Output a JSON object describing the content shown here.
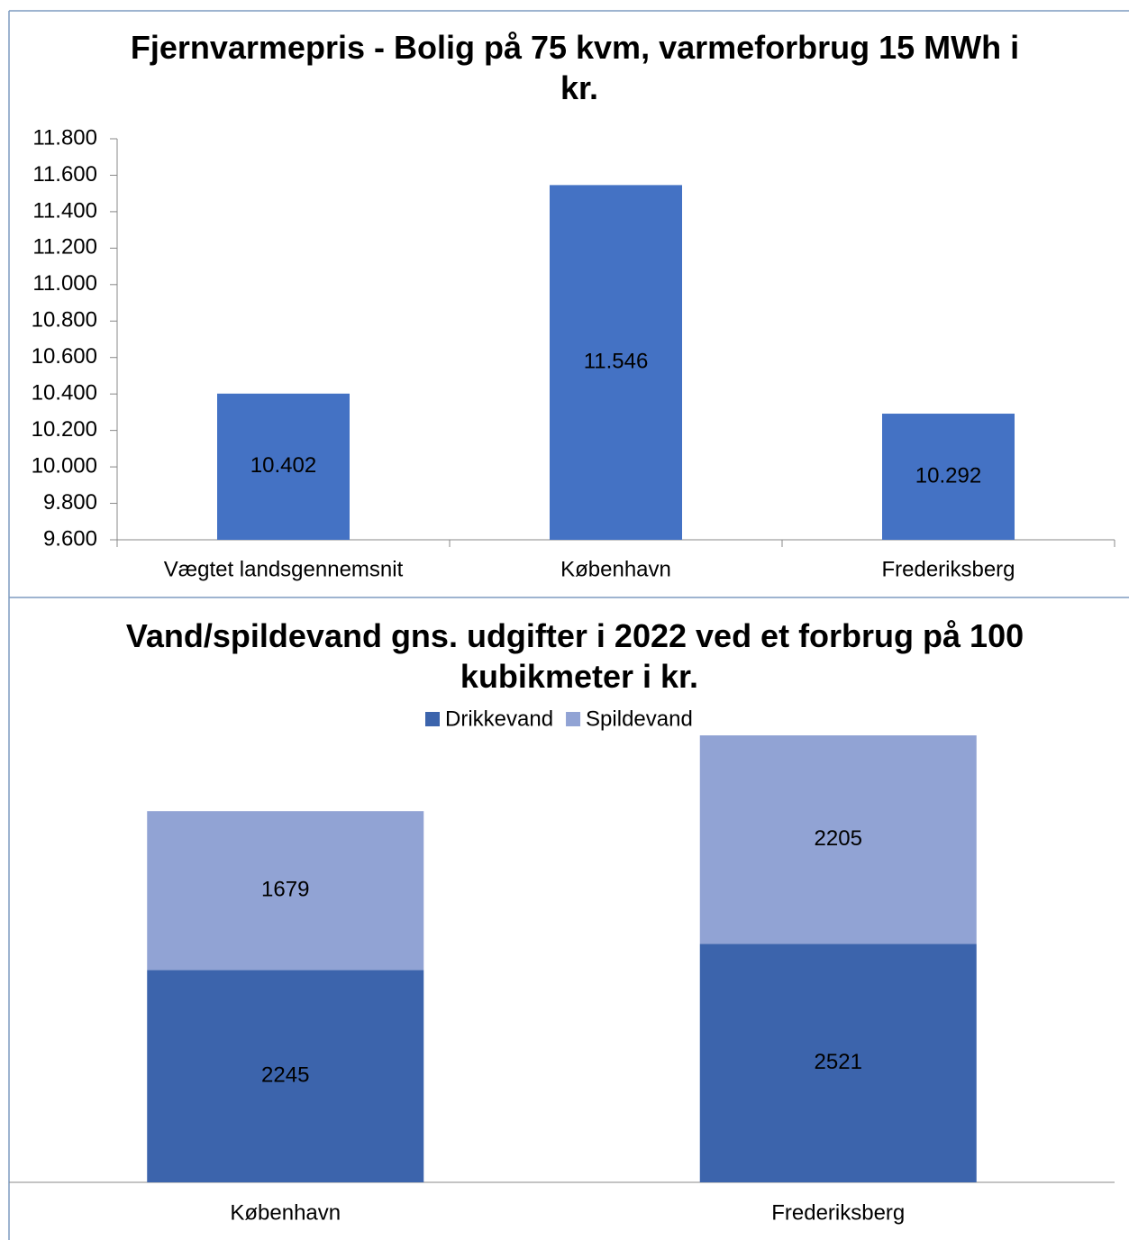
{
  "chart_data": [
    {
      "type": "bar",
      "title": "Fjernvarmepris - Bolig på 75 kvm, varmeforbrug 15 MWh i kr.",
      "categories": [
        "Vægtet landsgennemsnit",
        "København",
        "Frederiksberg"
      ],
      "values": [
        10402,
        11546,
        10292
      ],
      "value_labels": [
        "10.402",
        "11.546",
        "10.292"
      ],
      "color": "#4472c4",
      "ylim": [
        9600,
        11800
      ],
      "yticks": [
        {
          "value": 9600,
          "label": "9.600"
        },
        {
          "value": 9800,
          "label": "9.800"
        },
        {
          "value": 10000,
          "label": "10.000"
        },
        {
          "value": 10200,
          "label": "10.200"
        },
        {
          "value": 10400,
          "label": "10.400"
        },
        {
          "value": 10600,
          "label": "10.600"
        },
        {
          "value": 10800,
          "label": "10.800"
        },
        {
          "value": 11000,
          "label": "11.000"
        },
        {
          "value": 11200,
          "label": "11.200"
        },
        {
          "value": 11400,
          "label": "11.400"
        },
        {
          "value": 11600,
          "label": "11.600"
        },
        {
          "value": 11800,
          "label": "11.800"
        }
      ],
      "grid": false
    },
    {
      "type": "stacked_bar",
      "title": "Vand/spildevand gns. udgifter i 2022 ved et forbrug på 100 kubikmeter i kr.",
      "categories": [
        "København",
        "Frederiksberg"
      ],
      "series": [
        {
          "name": "Drikkevand",
          "color": "#3c64ac",
          "values": [
            2245,
            2521
          ]
        },
        {
          "name": "Spildevand",
          "color": "#91a3d4",
          "values": [
            1679,
            2205
          ]
        }
      ],
      "legend": "top"
    }
  ]
}
